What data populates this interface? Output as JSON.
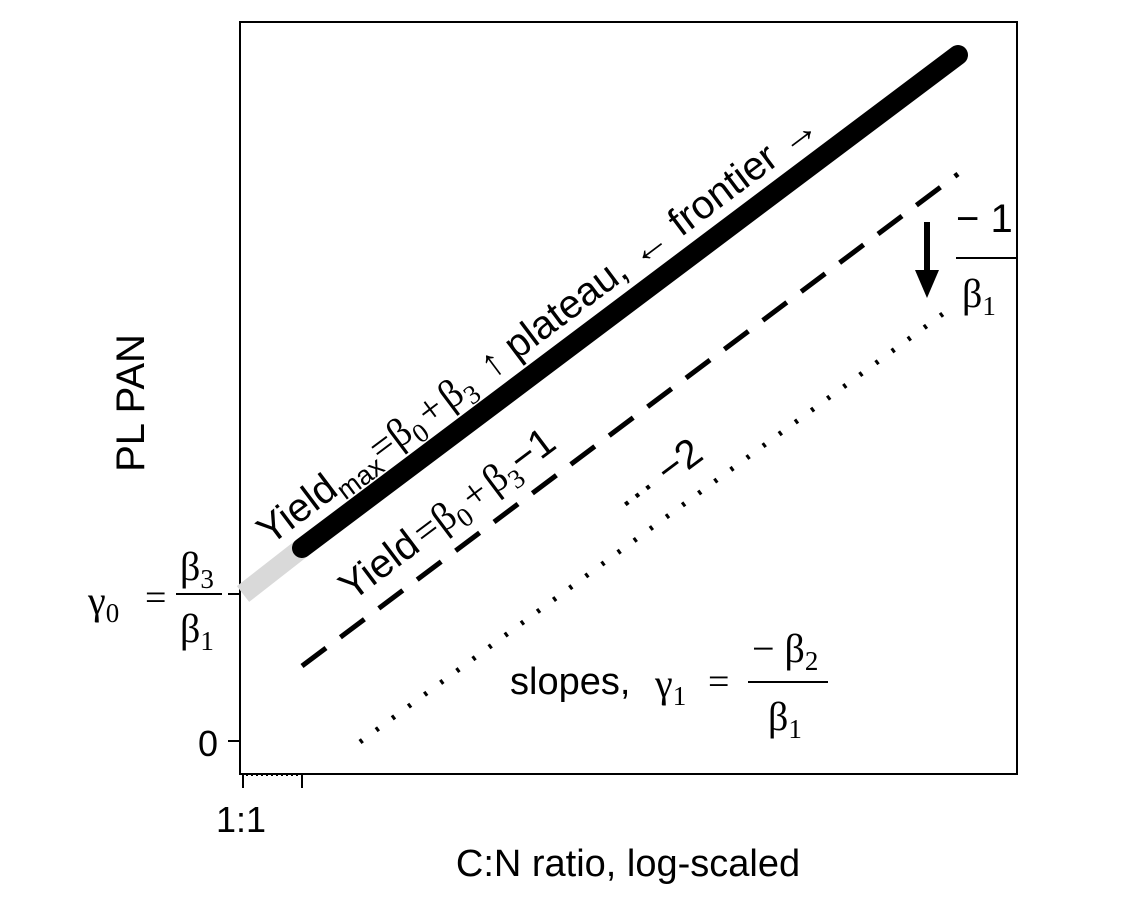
{
  "axes": {
    "x_label": "C:N ratio, log-scaled",
    "y_label": "PL PAN",
    "x_tick": "1:1",
    "y_tick": "0"
  },
  "intercept": {
    "lhs": "γ",
    "lhs_sub": "0",
    "equals": "=",
    "num": "β",
    "num_sub": "3",
    "den": "β",
    "den_sub": "1"
  },
  "frontier_label": {
    "yield": "Yield",
    "yield_sub": "max",
    "equals": "=",
    "b0": "β",
    "b0_sub": "0",
    "plus": "+",
    "b3": "β",
    "b3_sub": "3",
    "plateau": "↑ plateau,",
    "frontier": "← frontier →"
  },
  "dashed_label": {
    "yield": "Yield",
    "equals": "=",
    "b0": "β",
    "b0_sub": "0",
    "plus": "+",
    "b3": "β",
    "b3_sub": "3",
    "minus_one": "−1"
  },
  "dotted_label": "··· −2",
  "step_label": {
    "num": "− 1",
    "den": "β",
    "den_sub": "1"
  },
  "slopes_label": {
    "text": "slopes,",
    "lhs": "γ",
    "lhs_sub": "1",
    "equals": "=",
    "num": "− β",
    "num_sub": "2",
    "den": "β",
    "den_sub": "1"
  },
  "colors": {
    "frontier_line": "#000000",
    "extrapolated_segment": "#d9d9d9",
    "axis": "#000000"
  }
}
